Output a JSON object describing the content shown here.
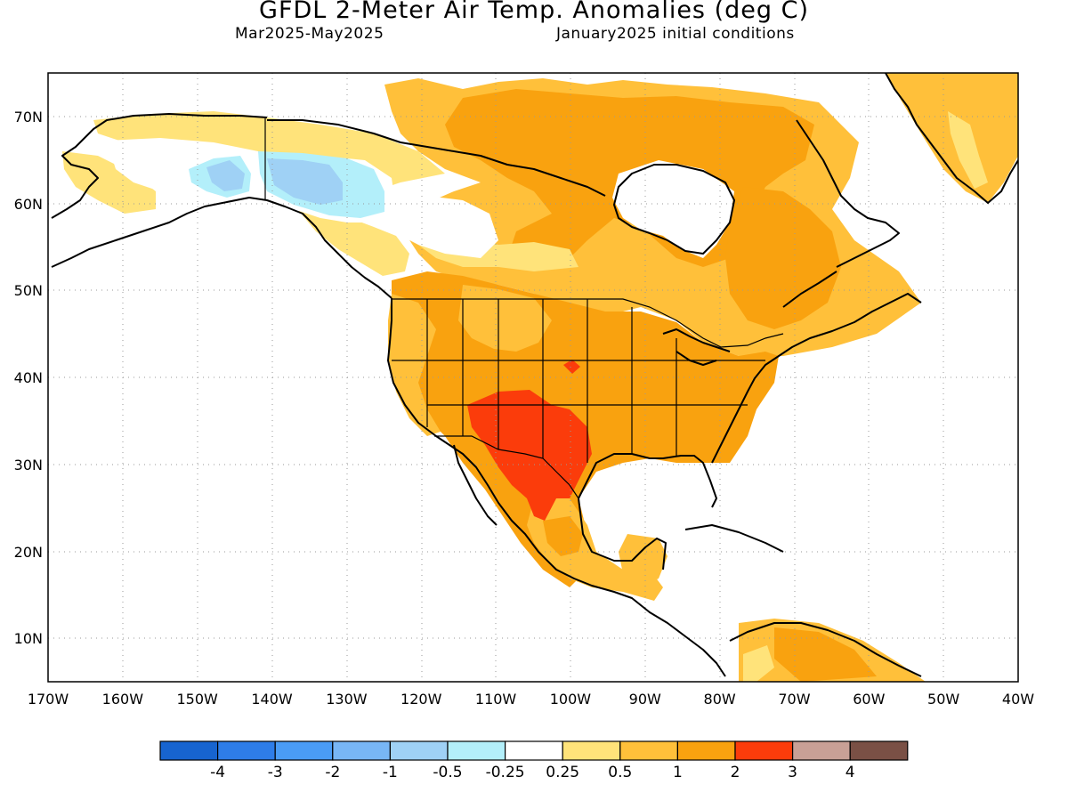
{
  "header": {
    "title": "GFDL 2-Meter Air Temp. Anomalies (deg C)",
    "period": "Mar2025-May2025",
    "init": "January2025 initial conditions"
  },
  "axes": {
    "lat_labels": [
      "70N",
      "60N",
      "50N",
      "40N",
      "30N",
      "20N",
      "10N"
    ],
    "lon_labels": [
      "170W",
      "160W",
      "150W",
      "140W",
      "130W",
      "120W",
      "110W",
      "100W",
      "90W",
      "80W",
      "70W",
      "60W",
      "50W",
      "40W"
    ],
    "lat_range": [
      5,
      75
    ],
    "lon_range": [
      -170,
      -40
    ],
    "grid": "dotted"
  },
  "legend": {
    "colors": [
      "#1764d0",
      "#2e7de8",
      "#4a9cf5",
      "#78b6f5",
      "#9fd1f5",
      "#b3effa",
      "#ffffff",
      "#ffe37a",
      "#ffc03a",
      "#f9a20f",
      "#fb3c0b",
      "#c8a096",
      "#7a5045"
    ],
    "labels": [
      "-4",
      "-3",
      "-2",
      "-1",
      "-0.5",
      "-0.25",
      "0.25",
      "0.5",
      "1",
      "2",
      "3",
      "4"
    ]
  },
  "colors": {
    "ocean": "#ffffff",
    "coast": "#000000"
  }
}
